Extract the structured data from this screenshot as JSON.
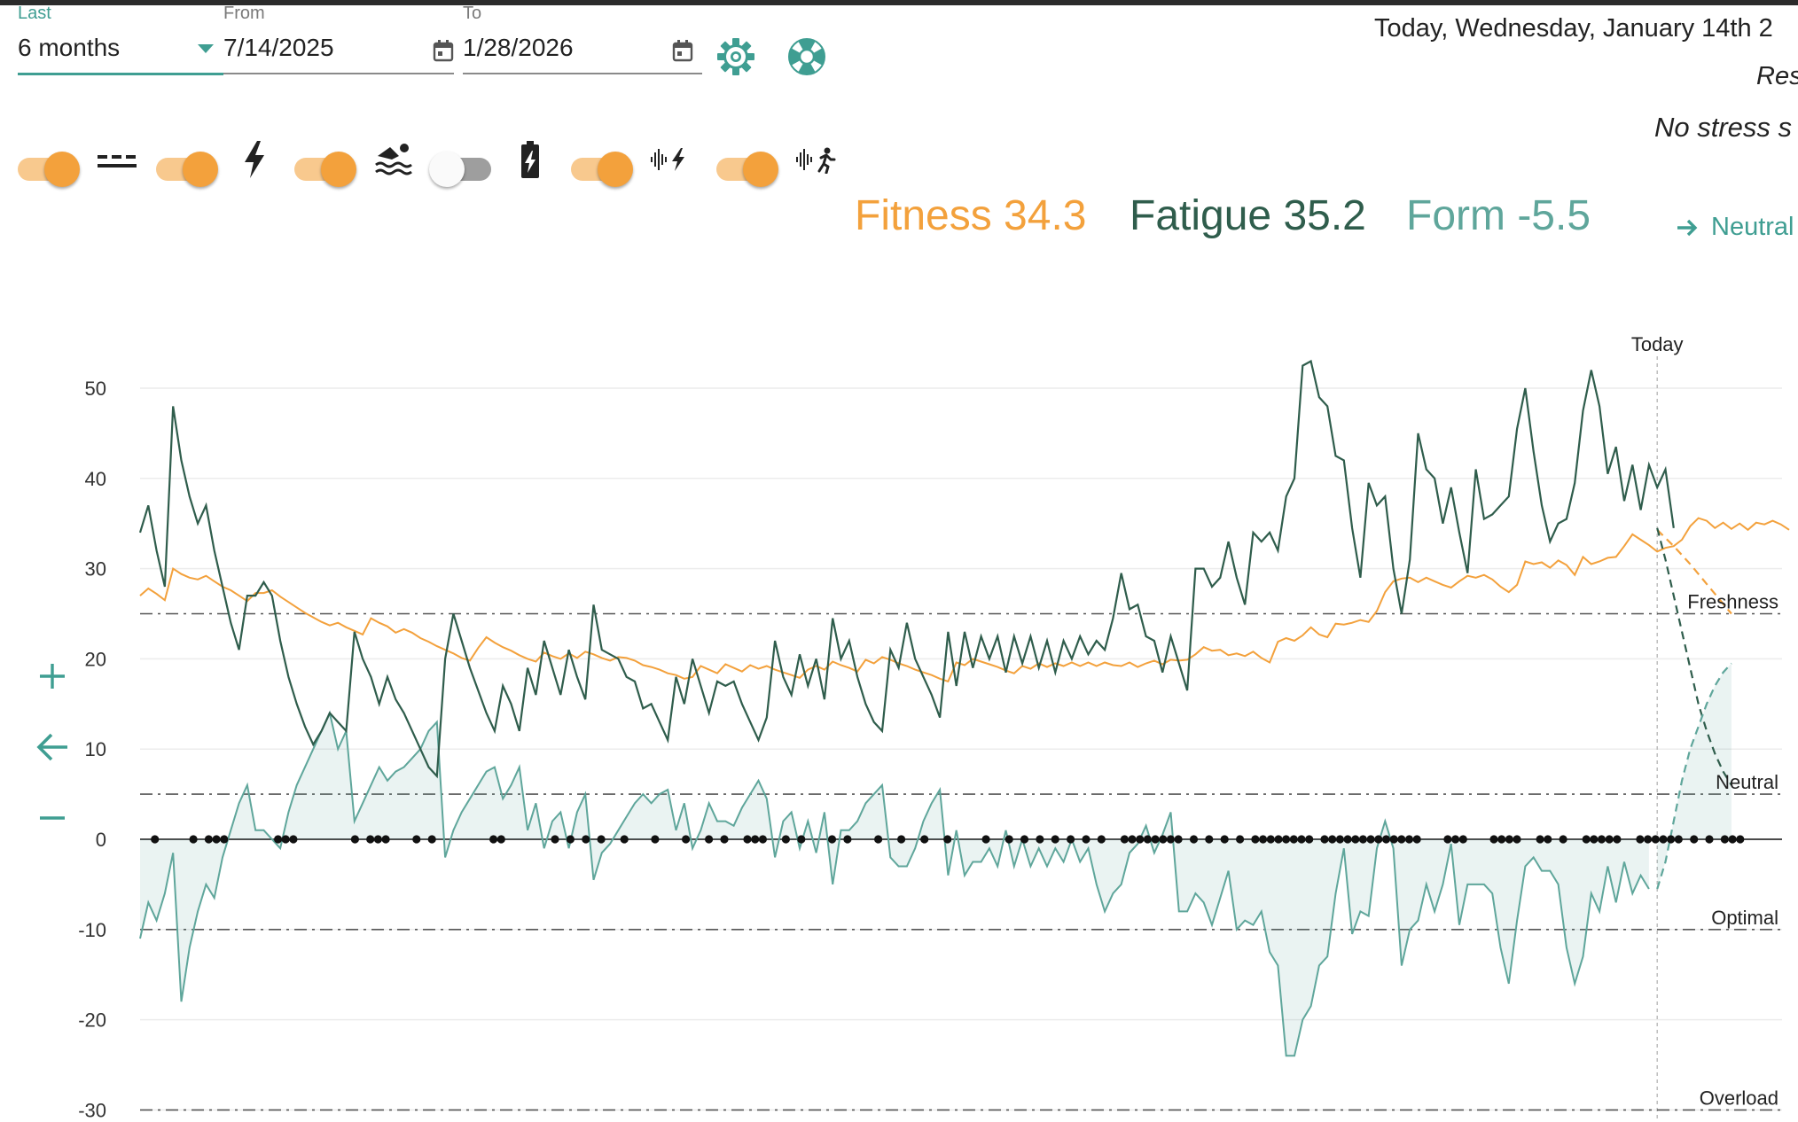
{
  "filters": {
    "range_label": "Last",
    "range_value": "6 months",
    "from_label": "From",
    "from_value": "7/14/2025",
    "to_label": "To",
    "to_value": "1/28/2026"
  },
  "header": {
    "date_text": "Today, Wednesday, January 14th 2",
    "rest_text": "Res",
    "stress_text": "No stress s"
  },
  "toggles": [
    {
      "name": "planned-toggle",
      "on": true,
      "icon": "dashed-lines-icon"
    },
    {
      "name": "power-toggle",
      "on": true,
      "icon": "lightning-icon"
    },
    {
      "name": "swim-toggle",
      "on": true,
      "icon": "swimmer-icon"
    },
    {
      "name": "battery-toggle",
      "on": false,
      "icon": "battery-charging-icon"
    },
    {
      "name": "hr-power-toggle",
      "on": true,
      "icon": "heartrate-lightning-icon"
    },
    {
      "name": "hr-run-toggle",
      "on": true,
      "icon": "heartrate-runner-icon"
    }
  ],
  "metrics": {
    "fitness": "Fitness 34.3",
    "fatigue": "Fatigue 35.2",
    "form": "Form -5.5",
    "status": "Neutral"
  },
  "colors": {
    "fitness": "#f3a13c",
    "fatigue": "#2f5d4c",
    "form": "#5fa69b",
    "accent": "#3f9e92"
  },
  "chart_data": {
    "type": "line",
    "y_ticks": [
      "50",
      "40",
      "30",
      "20",
      "10",
      "0",
      "-10",
      "-20",
      "-30"
    ],
    "ylim": [
      -30,
      55
    ],
    "today_label": "Today",
    "zones": [
      {
        "label": "Freshness",
        "value": 25
      },
      {
        "label": "Neutral",
        "value": 5
      },
      {
        "label": "Optimal",
        "value": -10
      },
      {
        "label": "Overload",
        "value": -30
      }
    ],
    "x_days": 198,
    "today_index": 184,
    "series": [
      {
        "name": "Fitness",
        "values": [
          27,
          27.8,
          27.2,
          26.5,
          30,
          29.4,
          29,
          28.8,
          29.2,
          28.6,
          28,
          27.6,
          27,
          26.4,
          27.3,
          27.3,
          27.6,
          26.9,
          26.3,
          25.7,
          25.1,
          24.6,
          24.1,
          23.7,
          24,
          23.5,
          23.1,
          22.7,
          24.5,
          24,
          23.6,
          22.9,
          23.3,
          22.9,
          22.3,
          21.9,
          21.4,
          21,
          20.6,
          20.1,
          19.8,
          21.2,
          22.4,
          21.8,
          21.3,
          20.9,
          20.4,
          20,
          19.7,
          20.7,
          20.3,
          20,
          20.6,
          20.1,
          20.8,
          20.5,
          20.1,
          19.8,
          20.2,
          20.1,
          19.8,
          19.3,
          19.1,
          18.8,
          18.4,
          18.2,
          17.8,
          18,
          19.2,
          18.8,
          18.4,
          19.4,
          19,
          18.6,
          19.3,
          18.9,
          19.2,
          18.8,
          18.5,
          18.2,
          17.9,
          18.8,
          19.2,
          18.8,
          19.7,
          19.3,
          19,
          18.6,
          19.9,
          19.5,
          20.2,
          19.9,
          19.5,
          19.2,
          18.8,
          18.5,
          18.2,
          17.8,
          17.5,
          19.6,
          19.3,
          20,
          19.7,
          19.4,
          19.1,
          18.7,
          18.4,
          19.2,
          18.9,
          19.5,
          19.1,
          19.5,
          19.2,
          19.6,
          19.2,
          19.6,
          19.2,
          19.6,
          19.3,
          19.2,
          19.6,
          19.1,
          19.5,
          19.8,
          19.4,
          19.9,
          19.8,
          19.9,
          20.5,
          21.3,
          20.9,
          21,
          20.4,
          20.6,
          20.3,
          20.8,
          20.1,
          19.6,
          21.9,
          22.3,
          22,
          22.6,
          23.5,
          22.7,
          22.4,
          23.9,
          23.8,
          24,
          24.3,
          24.1,
          25.3,
          27.4,
          28.6,
          28.9,
          29,
          28.5,
          29,
          28.6,
          28.2,
          27.9,
          28.6,
          29.2,
          29,
          29.3,
          28.8,
          28,
          27.4,
          28.2,
          30.8,
          30.5,
          30.7,
          30.1,
          30.9,
          30.4,
          29.3,
          31.3,
          30.5,
          30.8,
          31.2,
          31.3,
          32.5,
          33.8,
          33.2,
          32.6,
          31.9,
          32.3,
          32.5,
          33.2,
          34.7,
          35.6,
          35.3,
          34.5,
          35.1,
          34.4,
          35,
          34.3,
          35.1,
          34.9,
          35.3,
          34.9,
          34.3
        ]
      },
      {
        "name": "Fatigue",
        "values": [
          34,
          37,
          32,
          28,
          48,
          42,
          38,
          35,
          37,
          32,
          28,
          24,
          21,
          27,
          27,
          28.5,
          27,
          22,
          18,
          15,
          12.5,
          10.5,
          12,
          14,
          13,
          12,
          23,
          20,
          18,
          15,
          18,
          15.5,
          14,
          12,
          10,
          8,
          7,
          20,
          25,
          22,
          19,
          16.5,
          14,
          12,
          17,
          15,
          12,
          19,
          16,
          22,
          19,
          16,
          21,
          18,
          15.5,
          26,
          21,
          20.5,
          20,
          18,
          17.5,
          14.5,
          15,
          13,
          11,
          18,
          15,
          20,
          17,
          14,
          17.5,
          17,
          17.5,
          15,
          13,
          11,
          13.5,
          22,
          18,
          16,
          20.5,
          17,
          20,
          15.5,
          24.5,
          20,
          22,
          18,
          15,
          13,
          12,
          21,
          19,
          24,
          20,
          18,
          16,
          13.5,
          23,
          17,
          23,
          19,
          22.5,
          20,
          22.5,
          18.5,
          22.5,
          19.5,
          22.5,
          19,
          22,
          18.5,
          22,
          20,
          22.5,
          20.5,
          22,
          21,
          24.5,
          29.5,
          25.5,
          26,
          22.5,
          22,
          18.5,
          22.5,
          19.5,
          16.5,
          30,
          30,
          28,
          29,
          33,
          29,
          26,
          34,
          33,
          34,
          32,
          38,
          40,
          52.5,
          53,
          49,
          48,
          42.5,
          42,
          34.5,
          29,
          39.5,
          37,
          38,
          30,
          25,
          31,
          45,
          41,
          40,
          35,
          39,
          34,
          29.5,
          41,
          35.5,
          36,
          37,
          38,
          45.5,
          50,
          43,
          37,
          33,
          35,
          35.5,
          39.5,
          47.5,
          52,
          48,
          40.5,
          43.5,
          37.5,
          41.5,
          36.5,
          41.5,
          39,
          41,
          34.5
        ]
      },
      {
        "name": "Form",
        "values": [
          -11,
          -7,
          -9,
          -6,
          -1.5,
          -18,
          -12,
          -8,
          -5,
          -6.5,
          -2,
          1,
          4,
          6,
          1,
          1,
          0,
          -1,
          3,
          6,
          8,
          10,
          12,
          14,
          10,
          12,
          2,
          4,
          6,
          8,
          6.5,
          7.5,
          8,
          9,
          10,
          12,
          13,
          -2,
          1,
          3,
          4.5,
          6,
          7.5,
          8,
          4.5,
          6,
          8,
          1,
          4,
          -1,
          2,
          3,
          -1,
          3,
          5,
          -4.5,
          -1.5,
          -0.5,
          1,
          2.5,
          4,
          5,
          4,
          5,
          5.5,
          1,
          4,
          -1,
          1,
          4,
          2,
          2,
          1.5,
          3.5,
          5,
          6.5,
          4.5,
          -2,
          2,
          3,
          -1,
          2,
          -1.5,
          3,
          -5,
          1,
          1,
          2,
          4,
          5,
          6,
          -2,
          -3,
          -3,
          -1,
          2,
          4,
          5.5,
          -4,
          1,
          -4,
          -2.5,
          -2.5,
          -1,
          -3,
          1,
          -3,
          0,
          -3,
          -1,
          -3,
          -1,
          -2.5,
          0,
          -2.5,
          -1,
          -5,
          -8,
          -6,
          -5,
          -1.5,
          -0.5,
          1.5,
          -1.5,
          0.5,
          3,
          -8,
          -8,
          -6,
          -7,
          -9.5,
          -6.5,
          -3.5,
          -10,
          -9,
          -9.5,
          -8,
          -12.5,
          -14,
          -24,
          -24,
          -20,
          -18.5,
          -14,
          -13,
          -6,
          -1,
          -10.5,
          -8,
          -8.5,
          -1,
          2,
          -1,
          -14,
          -10,
          -9,
          -5,
          -8,
          -5,
          -0.5,
          -9.5,
          -5,
          -5,
          -5,
          -6,
          -12,
          -16,
          -9,
          -3,
          -2,
          -3.5,
          -3.5,
          -5,
          -12,
          -16,
          -13,
          -6,
          -8,
          -3,
          -7,
          -2.5,
          -6,
          -4,
          -5.5
        ]
      },
      {
        "name": "Fitness projection",
        "values": [
          34.3,
          33.4,
          32.5,
          31.5,
          30.5,
          29.4,
          28.3,
          27.2,
          26.1,
          25
        ]
      },
      {
        "name": "Fatigue projection",
        "values": [
          34.5,
          31,
          27,
          23,
          19,
          15,
          12,
          9.5,
          7.5,
          6
        ]
      },
      {
        "name": "Form projection",
        "values": [
          -5.5,
          -2.5,
          2,
          6.5,
          10,
          12.5,
          15,
          17,
          18.5,
          19.5
        ]
      }
    ],
    "session_day_indices": [
      1,
      6,
      8,
      9,
      10,
      17,
      18,
      19,
      27,
      29,
      30,
      31,
      35,
      37,
      45,
      46,
      53,
      55,
      57,
      59,
      62,
      66,
      70,
      73,
      75,
      78,
      79,
      80,
      83,
      85,
      89,
      91,
      95,
      98,
      101,
      104,
      109,
      112,
      114,
      116,
      118,
      120,
      122,
      124,
      127,
      128,
      129,
      130,
      131,
      132,
      133,
      134,
      136,
      138,
      140,
      142,
      144,
      145,
      146,
      147,
      148,
      149,
      150,
      151,
      153,
      154,
      155,
      156,
      157,
      158,
      159,
      160,
      161,
      162,
      163,
      164,
      165,
      169,
      170,
      171,
      175,
      176,
      177,
      178,
      181,
      182,
      184,
      187,
      188,
      189,
      190,
      191,
      194,
      195,
      196,
      197,
      198,
      199,
      201,
      203,
      205,
      206,
      207
    ]
  }
}
